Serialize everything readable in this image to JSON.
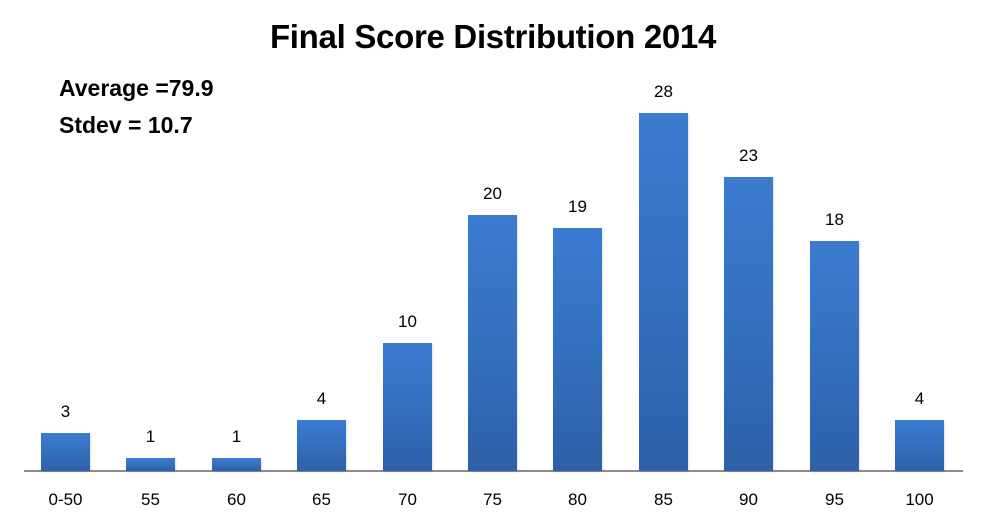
{
  "chart_data": {
    "type": "bar",
    "title": "Final Score Distribution 2014",
    "annotations": [
      "Average =79.9",
      "Stdev = 10.7"
    ],
    "categories": [
      "0-50",
      "55",
      "60",
      "65",
      "70",
      "75",
      "80",
      "85",
      "90",
      "95",
      "100"
    ],
    "values": [
      3,
      1,
      1,
      4,
      10,
      20,
      19,
      28,
      23,
      18,
      4
    ],
    "xlabel": "",
    "ylabel": "",
    "ylim": [
      0,
      30
    ],
    "grid": false,
    "legend": null,
    "data_labels": true,
    "bar_color": "#3470bf"
  },
  "stats": {
    "average": "Average =79.9",
    "stdev": "Stdev = 10.7"
  }
}
